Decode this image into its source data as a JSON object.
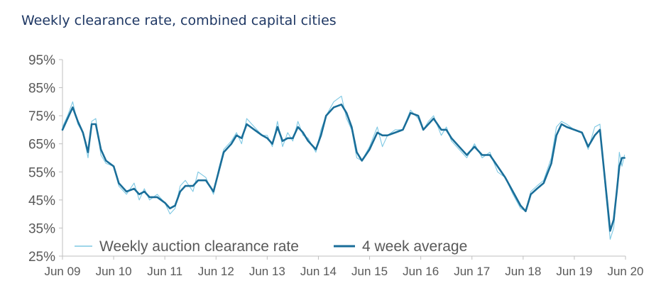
{
  "chart_data": {
    "type": "line",
    "title": "Weekly clearance rate, combined capital cities",
    "xlabel": "",
    "ylabel": "",
    "ylim": [
      25,
      95
    ],
    "y_ticks": [
      "95%",
      "85%",
      "75%",
      "65%",
      "55%",
      "45%",
      "35%",
      "25%"
    ],
    "y_tick_values": [
      95,
      85,
      75,
      65,
      55,
      45,
      35,
      25
    ],
    "x_ticks": [
      "Jun 09",
      "Jun 10",
      "Jun 11",
      "Jun 12",
      "Jun 13",
      "Jun 14",
      "Jun 15",
      "Jun 16",
      "Jun 17",
      "Jun 18",
      "Jun 19",
      "Jun 20"
    ],
    "x_tick_values": [
      2009.45,
      2010.45,
      2011.45,
      2012.45,
      2013.45,
      2014.45,
      2015.45,
      2016.45,
      2017.45,
      2018.45,
      2019.45,
      2020.45
    ],
    "xlim": [
      2009.45,
      2020.45
    ],
    "gridlines": false,
    "legend_position": "bottom-left",
    "series": [
      {
        "name": "Weekly auction clearance rate",
        "color": "#7ec8e3",
        "style": "thin",
        "x": [
          2009.45,
          2009.55,
          2009.65,
          2009.75,
          2009.85,
          2009.95,
          2010.02,
          2010.1,
          2010.2,
          2010.3,
          2010.45,
          2010.55,
          2010.7,
          2010.85,
          2010.95,
          2011.05,
          2011.15,
          2011.3,
          2011.45,
          2011.55,
          2011.65,
          2011.75,
          2011.85,
          2012.0,
          2012.1,
          2012.25,
          2012.4,
          2012.5,
          2012.6,
          2012.75,
          2012.85,
          2012.95,
          2013.05,
          2013.2,
          2013.35,
          2013.45,
          2013.55,
          2013.65,
          2013.75,
          2013.85,
          2013.95,
          2014.05,
          2014.15,
          2014.25,
          2014.4,
          2014.5,
          2014.6,
          2014.75,
          2014.9,
          2015.0,
          2015.1,
          2015.2,
          2015.3,
          2015.45,
          2015.6,
          2015.7,
          2015.8,
          2015.95,
          2016.1,
          2016.25,
          2016.4,
          2016.5,
          2016.6,
          2016.7,
          2016.85,
          2016.95,
          2017.05,
          2017.2,
          2017.35,
          2017.5,
          2017.65,
          2017.8,
          2017.95,
          2018.1,
          2018.25,
          2018.4,
          2018.5,
          2018.6,
          2018.72,
          2018.85,
          2019.0,
          2019.1,
          2019.2,
          2019.3,
          2019.45,
          2019.6,
          2019.72,
          2019.85,
          2019.95,
          2020.05,
          2020.15,
          2020.22,
          2020.28,
          2020.33,
          2020.38,
          2020.43
        ],
        "values": [
          71,
          75,
          80,
          72,
          69,
          60,
          73,
          74,
          61,
          58,
          57,
          50,
          47,
          51,
          45,
          49,
          45,
          47,
          44,
          40,
          42,
          50,
          52,
          48,
          55,
          53,
          47,
          56,
          63,
          66,
          69,
          65,
          74,
          71,
          68,
          68,
          64,
          73,
          64,
          69,
          66,
          73,
          68,
          67,
          62,
          70,
          75,
          80,
          82,
          74,
          70,
          60,
          59,
          64,
          71,
          64,
          68,
          70,
          70,
          77,
          74,
          70,
          73,
          75,
          68,
          71,
          66,
          63,
          60,
          65,
          60,
          62,
          55,
          53,
          47,
          42,
          41,
          48,
          50,
          52,
          60,
          71,
          73,
          72,
          70,
          69,
          63,
          71,
          72,
          50,
          31,
          35,
          48,
          62,
          57,
          61
        ]
      },
      {
        "name": "4 week average",
        "color": "#1a6e99",
        "style": "thick",
        "x": [
          2009.45,
          2009.55,
          2009.65,
          2009.75,
          2009.85,
          2009.95,
          2010.02,
          2010.1,
          2010.2,
          2010.3,
          2010.45,
          2010.55,
          2010.7,
          2010.85,
          2010.95,
          2011.05,
          2011.15,
          2011.3,
          2011.45,
          2011.55,
          2011.65,
          2011.75,
          2011.85,
          2012.0,
          2012.1,
          2012.25,
          2012.4,
          2012.5,
          2012.6,
          2012.75,
          2012.85,
          2012.95,
          2013.05,
          2013.2,
          2013.35,
          2013.45,
          2013.55,
          2013.65,
          2013.75,
          2013.85,
          2013.95,
          2014.05,
          2014.15,
          2014.25,
          2014.4,
          2014.5,
          2014.6,
          2014.75,
          2014.9,
          2015.0,
          2015.1,
          2015.2,
          2015.3,
          2015.45,
          2015.6,
          2015.7,
          2015.8,
          2015.95,
          2016.1,
          2016.25,
          2016.4,
          2016.5,
          2016.6,
          2016.7,
          2016.85,
          2016.95,
          2017.05,
          2017.2,
          2017.35,
          2017.5,
          2017.65,
          2017.8,
          2017.95,
          2018.1,
          2018.25,
          2018.4,
          2018.5,
          2018.6,
          2018.72,
          2018.85,
          2019.0,
          2019.1,
          2019.2,
          2019.3,
          2019.45,
          2019.6,
          2019.72,
          2019.85,
          2019.95,
          2020.05,
          2020.15,
          2020.22,
          2020.28,
          2020.33,
          2020.38,
          2020.43
        ],
        "values": [
          70,
          74,
          78,
          73,
          69,
          62,
          72,
          72,
          63,
          59,
          57,
          51,
          48,
          49,
          47,
          48,
          46,
          46,
          44,
          42,
          43,
          48,
          50,
          50,
          52,
          52,
          48,
          55,
          62,
          65,
          68,
          67,
          72,
          70,
          68,
          67,
          65,
          71,
          66,
          67,
          67,
          71,
          69,
          66,
          63,
          68,
          75,
          78,
          79,
          76,
          71,
          62,
          59,
          63,
          69,
          68,
          68,
          69,
          70,
          76,
          75,
          70,
          72,
          74,
          70,
          70,
          67,
          64,
          61,
          64,
          61,
          61,
          57,
          53,
          48,
          43,
          41,
          47,
          49,
          51,
          58,
          68,
          72,
          71,
          70,
          69,
          64,
          68,
          70,
          52,
          34,
          38,
          48,
          57,
          60,
          60
        ]
      }
    ]
  }
}
